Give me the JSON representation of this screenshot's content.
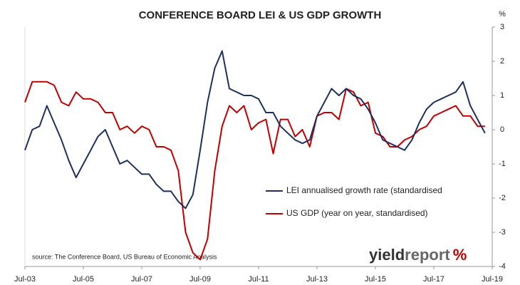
{
  "chart_data": {
    "type": "line",
    "title": "CONFERENCE BOARD LEI & US GDP GROWTH",
    "y_unit": "%",
    "source": "source: The Conference Board, US Bureau of Economic Analysis",
    "logo": {
      "part1": "yield",
      "part2": "report",
      "symbol": "%"
    },
    "x": [
      "2003-07",
      "2003-10",
      "2004-01",
      "2004-04",
      "2004-07",
      "2004-10",
      "2005-01",
      "2005-04",
      "2005-07",
      "2005-10",
      "2006-01",
      "2006-04",
      "2006-07",
      "2006-10",
      "2007-01",
      "2007-04",
      "2007-07",
      "2007-10",
      "2008-01",
      "2008-04",
      "2008-07",
      "2008-10",
      "2009-01",
      "2009-04",
      "2009-07",
      "2009-10",
      "2010-01",
      "2010-04",
      "2010-07",
      "2010-10",
      "2011-01",
      "2011-04",
      "2011-07",
      "2011-10",
      "2012-01",
      "2012-04",
      "2012-07",
      "2012-10",
      "2013-01",
      "2013-04",
      "2013-07",
      "2013-10",
      "2014-01",
      "2014-04",
      "2014-07",
      "2014-10",
      "2015-01",
      "2015-04",
      "2015-07",
      "2015-10",
      "2016-01",
      "2016-04",
      "2016-07",
      "2016-10",
      "2017-01",
      "2017-04",
      "2017-07",
      "2017-10",
      "2018-01",
      "2018-04",
      "2018-07",
      "2018-10",
      "2019-01",
      "2019-04"
    ],
    "series": [
      {
        "name": "LEI annualised growth rate (standardised",
        "color": "#1f2f5e",
        "values": [
          -0.6,
          0.0,
          0.1,
          0.7,
          0.2,
          -0.3,
          -0.9,
          -1.4,
          -1.0,
          -0.6,
          -0.2,
          0.0,
          -0.5,
          -1.0,
          -0.9,
          -1.1,
          -1.3,
          -1.3,
          -1.6,
          -1.8,
          -1.8,
          -2.1,
          -2.3,
          -1.9,
          -0.6,
          0.8,
          1.8,
          2.3,
          1.2,
          1.1,
          1.0,
          1.0,
          0.9,
          0.5,
          0.5,
          0.1,
          -0.1,
          -0.3,
          -0.4,
          -0.3,
          0.4,
          0.8,
          1.2,
          1.0,
          1.2,
          1.0,
          0.9,
          0.6,
          0.2,
          -0.3,
          -0.4,
          -0.5,
          -0.6,
          -0.3,
          0.2,
          0.6,
          0.8,
          0.9,
          1.0,
          1.1,
          1.4,
          0.7,
          0.3,
          -0.1
        ]
      },
      {
        "name": "US GDP (year on year, standardised)",
        "color": "#c00000",
        "values": [
          0.8,
          1.4,
          1.4,
          1.4,
          1.3,
          0.8,
          0.7,
          1.1,
          0.9,
          0.9,
          0.8,
          0.5,
          0.5,
          0.0,
          0.1,
          -0.1,
          0.1,
          0.0,
          -0.5,
          -0.5,
          -0.6,
          -1.2,
          -3.0,
          -3.6,
          -3.8,
          -3.2,
          -1.2,
          0.1,
          0.7,
          0.5,
          0.7,
          0.0,
          0.2,
          0.3,
          -0.7,
          0.3,
          0.3,
          -0.2,
          0.0,
          -0.5,
          0.4,
          0.5,
          0.5,
          0.3,
          1.2,
          1.1,
          0.7,
          0.8,
          -0.1,
          -0.2,
          -0.5,
          -0.5,
          -0.3,
          -0.2,
          0.0,
          0.1,
          0.4,
          0.5,
          0.6,
          0.7,
          0.4,
          0.4,
          0.1,
          0.1
        ]
      }
    ],
    "xlim": [
      "2003-07",
      "2019-07"
    ],
    "xticks": [
      {
        "value": "2003-07",
        "label": "Jul-03"
      },
      {
        "value": "2005-07",
        "label": "Jul-05"
      },
      {
        "value": "2007-07",
        "label": "Jul-07"
      },
      {
        "value": "2009-07",
        "label": "Jul-09"
      },
      {
        "value": "2011-07",
        "label": "Jul-11"
      },
      {
        "value": "2013-07",
        "label": "Jul-13"
      },
      {
        "value": "2015-07",
        "label": "Jul-15"
      },
      {
        "value": "2017-07",
        "label": "Jul-17"
      },
      {
        "value": "2019-07",
        "label": "Jul-19"
      }
    ],
    "ylim": [
      -4,
      3
    ],
    "yticks": [
      -4,
      -3,
      -2,
      -1,
      0,
      1,
      2,
      3
    ],
    "grid": false
  }
}
